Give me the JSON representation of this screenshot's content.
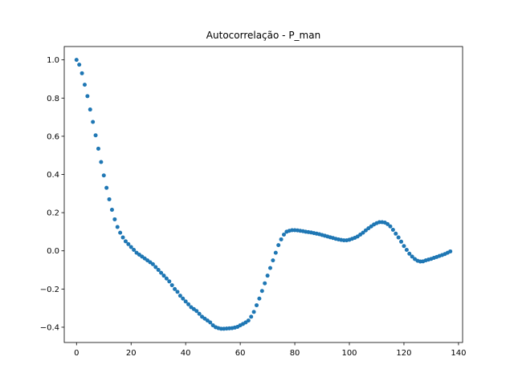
{
  "chart_data": {
    "type": "scatter",
    "title": "Autocorrelação - P_man",
    "xlabel": "",
    "ylabel": "",
    "xlim": [
      -4.5,
      141.5
    ],
    "ylim": [
      -0.48,
      1.07
    ],
    "x_ticks": [
      0,
      20,
      40,
      60,
      80,
      100,
      120,
      140
    ],
    "y_ticks": [
      -0.4,
      -0.2,
      0.0,
      0.2,
      0.4,
      0.6,
      0.8,
      1.0
    ],
    "x_tick_labels": [
      "0",
      "20",
      "40",
      "60",
      "80",
      "100",
      "120",
      "140"
    ],
    "y_tick_labels": [
      "−0.4",
      "−0.2",
      "0.0",
      "0.2",
      "0.4",
      "0.6",
      "0.8",
      "1.0"
    ],
    "grid": false,
    "color": "#1f77b4",
    "series": [
      {
        "x": [
          0,
          1,
          2,
          3,
          4,
          5,
          6,
          7,
          8,
          9,
          10,
          11,
          12,
          13,
          14,
          15,
          16,
          17,
          18,
          19,
          20,
          21,
          22,
          23,
          24,
          25,
          26,
          27,
          28,
          29,
          30,
          31,
          32,
          33,
          34,
          35,
          36,
          37,
          38,
          39,
          40,
          41,
          42,
          43,
          44,
          45,
          46,
          47,
          48,
          49,
          50,
          51,
          52,
          53,
          54,
          55,
          56,
          57,
          58,
          59,
          60,
          61,
          62,
          63,
          64,
          65,
          66,
          67,
          68,
          69,
          70,
          71,
          72,
          73,
          74,
          75,
          76,
          77,
          78,
          79,
          80,
          81,
          82,
          83,
          84,
          85,
          86,
          87,
          88,
          89,
          90,
          91,
          92,
          93,
          94,
          95,
          96,
          97,
          98,
          99,
          100,
          101,
          102,
          103,
          104,
          105,
          106,
          107,
          108,
          109,
          110,
          111,
          112,
          113,
          114,
          115,
          116,
          117,
          118,
          119,
          120,
          121,
          122,
          123,
          124,
          125,
          126,
          127,
          128,
          129,
          130,
          131,
          132,
          133,
          134,
          135,
          136,
          137
        ],
        "y": [
          1.0,
          0.975,
          0.93,
          0.87,
          0.81,
          0.74,
          0.675,
          0.605,
          0.535,
          0.465,
          0.395,
          0.33,
          0.27,
          0.215,
          0.165,
          0.125,
          0.095,
          0.07,
          0.05,
          0.035,
          0.02,
          0.005,
          -0.01,
          -0.02,
          -0.03,
          -0.04,
          -0.05,
          -0.06,
          -0.07,
          -0.085,
          -0.1,
          -0.115,
          -0.13,
          -0.145,
          -0.16,
          -0.18,
          -0.2,
          -0.215,
          -0.235,
          -0.25,
          -0.265,
          -0.28,
          -0.295,
          -0.305,
          -0.315,
          -0.33,
          -0.345,
          -0.355,
          -0.365,
          -0.375,
          -0.39,
          -0.4,
          -0.405,
          -0.408,
          -0.408,
          -0.407,
          -0.406,
          -0.405,
          -0.402,
          -0.398,
          -0.39,
          -0.383,
          -0.375,
          -0.365,
          -0.345,
          -0.32,
          -0.285,
          -0.25,
          -0.21,
          -0.17,
          -0.13,
          -0.09,
          -0.05,
          -0.01,
          0.03,
          0.06,
          0.085,
          0.1,
          0.105,
          0.108,
          0.108,
          0.107,
          0.105,
          0.103,
          0.1,
          0.098,
          0.096,
          0.093,
          0.09,
          0.087,
          0.083,
          0.079,
          0.075,
          0.071,
          0.067,
          0.063,
          0.06,
          0.057,
          0.055,
          0.055,
          0.058,
          0.063,
          0.068,
          0.075,
          0.085,
          0.095,
          0.107,
          0.118,
          0.128,
          0.138,
          0.145,
          0.15,
          0.15,
          0.148,
          0.14,
          0.128,
          0.11,
          0.09,
          0.07,
          0.048,
          0.025,
          0.005,
          -0.015,
          -0.03,
          -0.043,
          -0.052,
          -0.056,
          -0.055,
          -0.05,
          -0.046,
          -0.042,
          -0.037,
          -0.032,
          -0.027,
          -0.022,
          -0.017,
          -0.01,
          -0.003
        ]
      }
    ]
  }
}
